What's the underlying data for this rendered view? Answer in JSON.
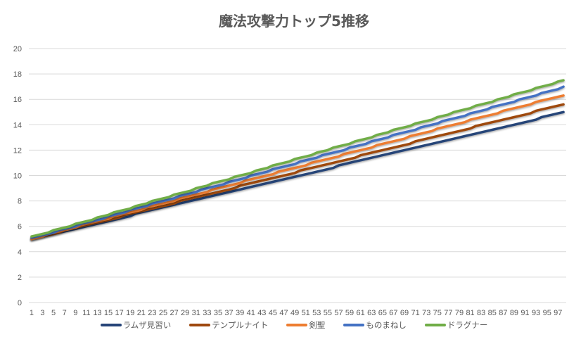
{
  "chart_data": {
    "type": "line",
    "title": "魔法攻撃力トップ5推移",
    "xlabel": "",
    "ylabel": "",
    "ylim": [
      0,
      20
    ],
    "yticks": [
      0,
      2,
      4,
      6,
      8,
      10,
      12,
      14,
      16,
      18,
      20
    ],
    "grid": true,
    "legend": "bottom",
    "categories": [
      1,
      2,
      3,
      4,
      5,
      6,
      7,
      8,
      9,
      10,
      11,
      12,
      13,
      14,
      15,
      16,
      17,
      18,
      19,
      20,
      21,
      22,
      23,
      24,
      25,
      26,
      27,
      28,
      29,
      30,
      31,
      32,
      33,
      34,
      35,
      36,
      37,
      38,
      39,
      40,
      41,
      42,
      43,
      44,
      45,
      46,
      47,
      48,
      49,
      50,
      51,
      52,
      53,
      54,
      55,
      56,
      57,
      58,
      59,
      60,
      61,
      62,
      63,
      64,
      65,
      66,
      67,
      68,
      69,
      70,
      71,
      72,
      73,
      74,
      75,
      76,
      77,
      78,
      79,
      80,
      81,
      82,
      83,
      84,
      85,
      86,
      87,
      88,
      89,
      90,
      91,
      92,
      93,
      94,
      95,
      96,
      97,
      98
    ],
    "series": [
      {
        "name": "ラムザ見習い",
        "color": "#264478",
        "values": [
          5.0,
          5.1,
          5.2,
          5.3,
          5.4,
          5.5,
          5.6,
          5.7,
          5.8,
          5.9,
          6.0,
          6.1,
          6.2,
          6.3,
          6.4,
          6.5,
          6.6,
          6.7,
          6.8,
          7.0,
          7.1,
          7.2,
          7.3,
          7.4,
          7.5,
          7.6,
          7.7,
          7.8,
          7.9,
          8.0,
          8.1,
          8.2,
          8.3,
          8.4,
          8.5,
          8.6,
          8.7,
          8.8,
          8.9,
          9.0,
          9.1,
          9.2,
          9.3,
          9.4,
          9.5,
          9.6,
          9.7,
          9.8,
          9.9,
          10.0,
          10.1,
          10.2,
          10.3,
          10.4,
          10.5,
          10.6,
          10.8,
          10.9,
          11.0,
          11.1,
          11.2,
          11.3,
          11.4,
          11.5,
          11.6,
          11.7,
          11.8,
          11.9,
          12.0,
          12.1,
          12.2,
          12.3,
          12.4,
          12.5,
          12.6,
          12.7,
          12.8,
          12.9,
          13.0,
          13.1,
          13.2,
          13.3,
          13.4,
          13.5,
          13.6,
          13.7,
          13.8,
          13.9,
          14.0,
          14.1,
          14.2,
          14.3,
          14.4,
          14.6,
          14.7,
          14.8,
          14.9,
          15.0
        ]
      },
      {
        "name": "テンプルナイト",
        "color": "#9E480E",
        "values": [
          5.0,
          5.1,
          5.2,
          5.3,
          5.4,
          5.5,
          5.7,
          5.8,
          5.9,
          6.0,
          6.1,
          6.2,
          6.3,
          6.4,
          6.5,
          6.6,
          6.7,
          6.9,
          7.0,
          7.1,
          7.2,
          7.3,
          7.4,
          7.5,
          7.6,
          7.7,
          7.8,
          8.0,
          8.1,
          8.2,
          8.3,
          8.4,
          8.5,
          8.6,
          8.7,
          8.8,
          8.9,
          9.0,
          9.2,
          9.3,
          9.4,
          9.5,
          9.6,
          9.7,
          9.8,
          9.9,
          10.0,
          10.1,
          10.2,
          10.4,
          10.5,
          10.6,
          10.7,
          10.8,
          10.9,
          11.0,
          11.1,
          11.2,
          11.3,
          11.4,
          11.6,
          11.7,
          11.8,
          11.9,
          12.0,
          12.1,
          12.2,
          12.3,
          12.4,
          12.5,
          12.7,
          12.8,
          12.9,
          13.0,
          13.1,
          13.2,
          13.3,
          13.4,
          13.5,
          13.6,
          13.7,
          13.9,
          14.0,
          14.1,
          14.2,
          14.3,
          14.4,
          14.5,
          14.6,
          14.7,
          14.8,
          14.9,
          15.1,
          15.2,
          15.3,
          15.4,
          15.5,
          15.6
        ]
      },
      {
        "name": "剣聖",
        "color": "#ED7D31",
        "values": [
          5.0,
          5.1,
          5.2,
          5.4,
          5.5,
          5.6,
          5.7,
          5.8,
          5.9,
          6.1,
          6.2,
          6.3,
          6.4,
          6.5,
          6.6,
          6.8,
          6.9,
          7.0,
          7.1,
          7.2,
          7.3,
          7.5,
          7.6,
          7.7,
          7.8,
          7.9,
          8.0,
          8.2,
          8.3,
          8.4,
          8.5,
          8.6,
          8.7,
          8.9,
          9.0,
          9.1,
          9.2,
          9.3,
          9.4,
          9.6,
          9.7,
          9.8,
          9.9,
          10.0,
          10.1,
          10.3,
          10.4,
          10.5,
          10.6,
          10.7,
          10.8,
          11.0,
          11.1,
          11.2,
          11.3,
          11.4,
          11.5,
          11.7,
          11.8,
          11.9,
          12.0,
          12.1,
          12.2,
          12.4,
          12.5,
          12.6,
          12.7,
          12.8,
          12.9,
          13.1,
          13.2,
          13.3,
          13.4,
          13.5,
          13.7,
          13.8,
          13.9,
          14.0,
          14.1,
          14.2,
          14.4,
          14.5,
          14.6,
          14.7,
          14.8,
          14.9,
          15.1,
          15.2,
          15.3,
          15.4,
          15.5,
          15.6,
          15.8,
          15.9,
          16.0,
          16.1,
          16.2,
          16.3
        ]
      },
      {
        "name": "ものまねし",
        "color": "#4472C4",
        "values": [
          5.1,
          5.2,
          5.3,
          5.4,
          5.5,
          5.7,
          5.8,
          5.9,
          6.0,
          6.2,
          6.3,
          6.4,
          6.5,
          6.6,
          6.8,
          6.9,
          7.0,
          7.1,
          7.3,
          7.4,
          7.5,
          7.6,
          7.8,
          7.9,
          8.0,
          8.1,
          8.2,
          8.4,
          8.5,
          8.6,
          8.7,
          8.9,
          9.0,
          9.1,
          9.2,
          9.3,
          9.5,
          9.6,
          9.7,
          9.8,
          10.0,
          10.1,
          10.2,
          10.3,
          10.5,
          10.6,
          10.7,
          10.8,
          10.9,
          11.1,
          11.2,
          11.3,
          11.4,
          11.6,
          11.7,
          11.8,
          11.9,
          12.0,
          12.2,
          12.3,
          12.4,
          12.5,
          12.7,
          12.8,
          12.9,
          13.0,
          13.2,
          13.3,
          13.4,
          13.5,
          13.6,
          13.8,
          13.9,
          14.0,
          14.1,
          14.3,
          14.4,
          14.5,
          14.6,
          14.7,
          14.9,
          15.0,
          15.1,
          15.2,
          15.4,
          15.5,
          15.6,
          15.7,
          15.8,
          16.0,
          16.1,
          16.2,
          16.3,
          16.5,
          16.6,
          16.7,
          16.8,
          17.0
        ]
      },
      {
        "name": "ドラグナー",
        "color": "#70AD47",
        "values": [
          5.2,
          5.3,
          5.4,
          5.5,
          5.7,
          5.8,
          5.9,
          6.0,
          6.2,
          6.3,
          6.4,
          6.5,
          6.7,
          6.8,
          6.9,
          7.1,
          7.2,
          7.3,
          7.4,
          7.6,
          7.7,
          7.8,
          8.0,
          8.1,
          8.2,
          8.3,
          8.5,
          8.6,
          8.7,
          8.8,
          9.0,
          9.1,
          9.2,
          9.4,
          9.5,
          9.6,
          9.7,
          9.9,
          10.0,
          10.1,
          10.2,
          10.4,
          10.5,
          10.6,
          10.8,
          10.9,
          11.0,
          11.1,
          11.3,
          11.4,
          11.5,
          11.6,
          11.8,
          11.9,
          12.0,
          12.2,
          12.3,
          12.4,
          12.5,
          12.7,
          12.8,
          12.9,
          13.0,
          13.2,
          13.3,
          13.4,
          13.6,
          13.7,
          13.8,
          13.9,
          14.1,
          14.2,
          14.3,
          14.4,
          14.6,
          14.7,
          14.8,
          15.0,
          15.1,
          15.2,
          15.3,
          15.5,
          15.6,
          15.7,
          15.8,
          16.0,
          16.1,
          16.2,
          16.4,
          16.5,
          16.6,
          16.7,
          16.9,
          17.0,
          17.1,
          17.2,
          17.4,
          17.5
        ]
      }
    ]
  }
}
